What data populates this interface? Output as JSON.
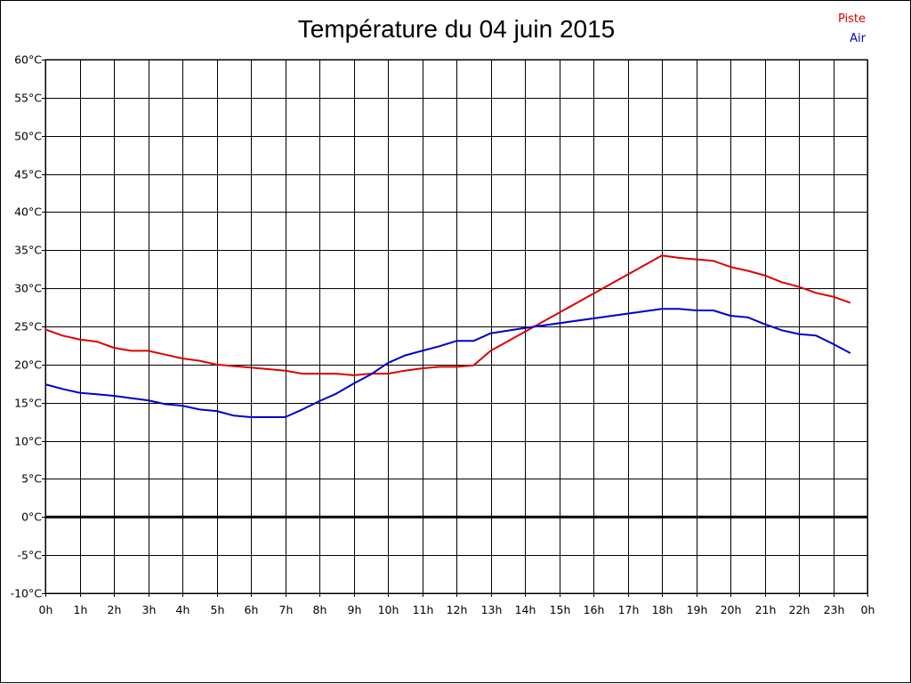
{
  "chart_data": {
    "type": "line",
    "title": "Température du 04 juin 2015",
    "x_tick_labels": [
      "0h",
      "1h",
      "2h",
      "3h",
      "4h",
      "5h",
      "6h",
      "7h",
      "8h",
      "9h",
      "10h",
      "11h",
      "12h",
      "13h",
      "14h",
      "15h",
      "16h",
      "17h",
      "18h",
      "19h",
      "20h",
      "21h",
      "22h",
      "23h",
      "0h"
    ],
    "y_tick_labels": [
      "60°C",
      "55°C",
      "50°C",
      "45°C",
      "40°C",
      "35°C",
      "30°C",
      "25°C",
      "20°C",
      "15°C",
      "10°C",
      "5°C",
      "0°C",
      "-5°C",
      "-10°C"
    ],
    "xlim": [
      0,
      24
    ],
    "ylim": [
      -10,
      60
    ],
    "grid": true,
    "zero_line": true,
    "legend_placement": "top-right",
    "series": [
      {
        "name": "Piste",
        "color": "#dd0000",
        "x": [
          0,
          0.5,
          1,
          1.5,
          2,
          2.5,
          3,
          3.5,
          4,
          4.5,
          5,
          5.5,
          6,
          6.5,
          7,
          7.5,
          8,
          8.5,
          9,
          9.5,
          10,
          10.5,
          11,
          11.5,
          12,
          12.5,
          13,
          18,
          18.5,
          19,
          19.5,
          20,
          20.5,
          21,
          21.5,
          22,
          22.5,
          23,
          23.5
        ],
        "values": [
          24.6,
          23.8,
          23.3,
          23.0,
          22.2,
          21.8,
          21.8,
          21.3,
          20.8,
          20.5,
          20.0,
          19.8,
          19.6,
          19.4,
          19.2,
          18.8,
          18.8,
          18.8,
          18.6,
          18.8,
          18.8,
          19.2,
          19.5,
          19.7,
          19.7,
          19.9,
          21.8,
          34.3,
          34.0,
          33.8,
          33.6,
          32.8,
          32.3,
          31.7,
          30.8,
          30.2,
          29.4,
          28.9,
          28.1
        ]
      },
      {
        "name": "Air",
        "color": "#0000cc",
        "x": [
          0,
          0.5,
          1,
          1.5,
          2,
          2.5,
          3,
          3.5,
          4,
          4.5,
          5,
          5.5,
          6,
          6.5,
          7,
          7.5,
          8,
          8.5,
          9,
          9.5,
          10,
          10.5,
          11,
          11.5,
          12,
          12.5,
          13,
          14,
          18,
          18.5,
          19,
          19.5,
          20,
          20.5,
          21,
          21.5,
          22,
          22.5,
          23,
          23.5
        ],
        "values": [
          17.4,
          16.8,
          16.3,
          16.1,
          15.9,
          15.6,
          15.3,
          14.8,
          14.6,
          14.1,
          13.9,
          13.3,
          13.1,
          13.1,
          13.1,
          14.1,
          15.2,
          16.2,
          17.5,
          18.7,
          20.2,
          21.2,
          21.8,
          22.4,
          23.1,
          23.1,
          24.1,
          24.8,
          27.3,
          27.3,
          27.1,
          27.1,
          26.4,
          26.2,
          25.3,
          24.5,
          24.0,
          23.8,
          22.7,
          21.5
        ]
      }
    ]
  }
}
